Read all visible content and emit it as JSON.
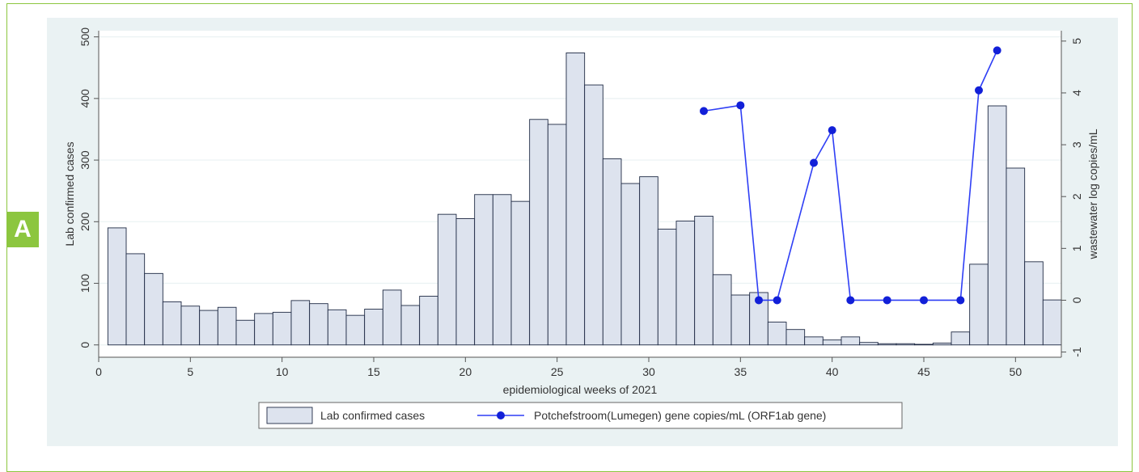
{
  "panel": {
    "label": "A"
  },
  "chart_data": {
    "type": "bar+line",
    "xlabel": "epidemiological weeks of 2021",
    "ylabel_left": "Lab confirmed cases",
    "ylabel_right": "wastewater log copies/mL",
    "xlim": [
      0,
      52.5
    ],
    "x_ticks": [
      0,
      5,
      10,
      15,
      20,
      25,
      30,
      35,
      40,
      45,
      50
    ],
    "ylim_left": [
      -20,
      510
    ],
    "y_ticks_left": [
      0,
      100,
      200,
      300,
      400,
      500
    ],
    "ylim_right": [
      -1.1,
      5.2
    ],
    "y_ticks_right": [
      -1,
      0,
      1,
      2,
      3,
      4,
      5
    ],
    "grid": true,
    "legend_position": "bottom-center",
    "colors": {
      "panel_bg": "#eaf2f3",
      "plot_bg": "#ffffff",
      "bar_fill": "#dde3ee",
      "bar_stroke": "#1f2a44",
      "line": "#2f3ff5",
      "marker": "#1220d8",
      "accent": "#8cc63f"
    },
    "bars": {
      "name": "Lab confirmed cases",
      "x": [
        1,
        2,
        3,
        4,
        5,
        6,
        7,
        8,
        9,
        10,
        11,
        12,
        13,
        14,
        15,
        16,
        17,
        18,
        19,
        20,
        21,
        22,
        23,
        24,
        25,
        26,
        27,
        28,
        29,
        30,
        31,
        32,
        33,
        34,
        35,
        36,
        37,
        38,
        39,
        40,
        41,
        42,
        43,
        44,
        45,
        46,
        47,
        48,
        49,
        50,
        51,
        52
      ],
      "values": [
        190,
        148,
        116,
        70,
        63,
        56,
        61,
        40,
        51,
        53,
        72,
        67,
        57,
        48,
        58,
        89,
        64,
        79,
        212,
        205,
        244,
        244,
        233,
        366,
        358,
        474,
        422,
        302,
        262,
        273,
        188,
        201,
        209,
        114,
        81,
        85,
        37,
        25,
        13,
        8,
        13,
        4,
        2,
        2,
        1,
        3,
        21,
        131,
        388,
        287,
        135,
        73
      ]
    },
    "line": {
      "name": "Potchefstroom(Lumegen) gene copies/mL (ORF1ab gene)",
      "x": [
        33,
        35,
        36,
        37,
        39,
        40,
        41,
        43,
        45,
        47,
        48,
        49
      ],
      "y": [
        3.65,
        3.76,
        0,
        0,
        2.65,
        3.28,
        0,
        0,
        0,
        0,
        4.05,
        4.82
      ]
    }
  }
}
